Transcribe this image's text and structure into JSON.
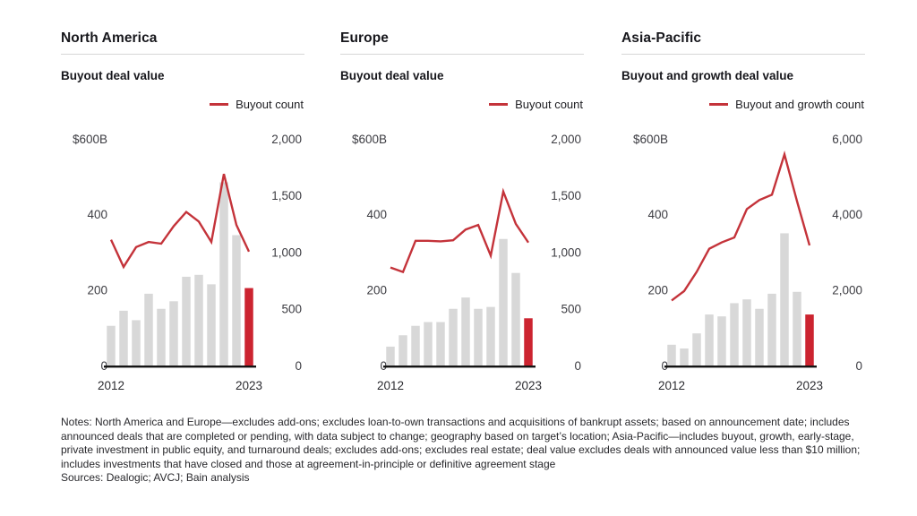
{
  "page": {
    "background": "#ffffff"
  },
  "colors": {
    "bar": "#d8d8d8",
    "bar_highlight": "#cc2430",
    "line": "#c4333a",
    "baseline": "#141414",
    "tick_text": "#3c3c42",
    "rule": "#d6d6d6"
  },
  "chart_data": [
    {
      "type": "bar",
      "title": "North America",
      "subtitle": "Buyout deal value",
      "legend": "Buyout count",
      "x": [
        2012,
        2013,
        2014,
        2015,
        2016,
        2017,
        2018,
        2019,
        2020,
        2021,
        2022,
        2023
      ],
      "x_tick_labels": [
        "2012",
        "2023"
      ],
      "bars": {
        "name": "Buyout deal value ($B)",
        "axis": "left",
        "values": [
          105,
          145,
          120,
          190,
          150,
          170,
          235,
          240,
          215,
          485,
          345,
          205
        ]
      },
      "line": {
        "name": "Buyout count",
        "axis": "right",
        "values": [
          1110,
          870,
          1045,
          1090,
          1075,
          1230,
          1355,
          1270,
          1090,
          1690,
          1240,
          1005
        ]
      },
      "highlight_last_bar": true,
      "left_axis": {
        "range": [
          0,
          600
        ],
        "ticks": [
          {
            "value": 600,
            "label": "$600B"
          },
          {
            "value": 400,
            "label": "400"
          },
          {
            "value": 200,
            "label": "200"
          },
          {
            "value": 0,
            "label": "0"
          }
        ]
      },
      "right_axis": {
        "range": [
          0,
          2000
        ],
        "ticks": [
          {
            "value": 2000,
            "label": "2,000"
          },
          {
            "value": 1500,
            "label": "1,500"
          },
          {
            "value": 1000,
            "label": "1,000"
          },
          {
            "value": 500,
            "label": "500"
          },
          {
            "value": 0,
            "label": "0"
          }
        ]
      },
      "grid": false,
      "legend_position": "top-right"
    },
    {
      "type": "bar",
      "title": "Europe",
      "subtitle": "Buyout deal value",
      "legend": "Buyout count",
      "x": [
        2012,
        2013,
        2014,
        2015,
        2016,
        2017,
        2018,
        2019,
        2020,
        2021,
        2022,
        2023
      ],
      "x_tick_labels": [
        "2012",
        "2023"
      ],
      "bars": {
        "name": "Buyout deal value ($B)",
        "axis": "left",
        "values": [
          50,
          80,
          105,
          115,
          115,
          150,
          180,
          150,
          155,
          335,
          245,
          125
        ]
      },
      "line": {
        "name": "Buyout count",
        "axis": "right",
        "values": [
          865,
          825,
          1100,
          1100,
          1095,
          1105,
          1200,
          1240,
          970,
          1535,
          1250,
          1085
        ]
      },
      "highlight_last_bar": true,
      "left_axis": {
        "range": [
          0,
          600
        ],
        "ticks": [
          {
            "value": 600,
            "label": "$600B"
          },
          {
            "value": 400,
            "label": "400"
          },
          {
            "value": 200,
            "label": "200"
          },
          {
            "value": 0,
            "label": "0"
          }
        ]
      },
      "right_axis": {
        "range": [
          0,
          2000
        ],
        "ticks": [
          {
            "value": 2000,
            "label": "2,000"
          },
          {
            "value": 1500,
            "label": "1,500"
          },
          {
            "value": 1000,
            "label": "1,000"
          },
          {
            "value": 500,
            "label": "500"
          },
          {
            "value": 0,
            "label": "0"
          }
        ]
      },
      "grid": false,
      "legend_position": "top-right"
    },
    {
      "type": "bar",
      "title": "Asia-Pacific",
      "subtitle": "Buyout and growth deal value",
      "legend": "Buyout and growth count",
      "x": [
        2012,
        2013,
        2014,
        2015,
        2016,
        2017,
        2018,
        2019,
        2020,
        2021,
        2022,
        2023
      ],
      "x_tick_labels": [
        "2012",
        "2023"
      ],
      "bars": {
        "name": "Buyout and growth deal value ($B)",
        "axis": "left",
        "values": [
          55,
          45,
          85,
          135,
          130,
          165,
          175,
          150,
          190,
          350,
          195,
          135
        ]
      },
      "line": {
        "name": "Buyout and growth count",
        "axis": "right",
        "values": [
          1720,
          1970,
          2480,
          3090,
          3260,
          3390,
          4140,
          4380,
          4520,
          5590,
          4350,
          3180
        ]
      },
      "highlight_last_bar": true,
      "left_axis": {
        "range": [
          0,
          600
        ],
        "ticks": [
          {
            "value": 600,
            "label": "$600B"
          },
          {
            "value": 400,
            "label": "400"
          },
          {
            "value": 200,
            "label": "200"
          },
          {
            "value": 0,
            "label": "0"
          }
        ]
      },
      "right_axis": {
        "range": [
          0,
          6000
        ],
        "ticks": [
          {
            "value": 6000,
            "label": "6,000"
          },
          {
            "value": 4000,
            "label": "4,000"
          },
          {
            "value": 2000,
            "label": "2,000"
          },
          {
            "value": 0,
            "label": "0"
          }
        ]
      },
      "grid": false,
      "legend_position": "top-right"
    }
  ],
  "notes": {
    "body": "Notes: North America and Europe—excludes add-ons; excludes loan-to-own transactions and acquisitions of bankrupt assets; based on announcement date; includes announced deals that are completed or pending, with data subject to change; geography based on target’s location; Asia-Pacific—includes buyout, growth, early-stage, private investment in public equity, and turnaround deals; excludes add-ons; excludes real estate; deal value excludes deals with announced value less than $10 million; includes investments that have closed and those at agreement-in-principle or definitive agreement stage",
    "sources": "Sources: Dealogic; AVCJ; Bain analysis"
  }
}
